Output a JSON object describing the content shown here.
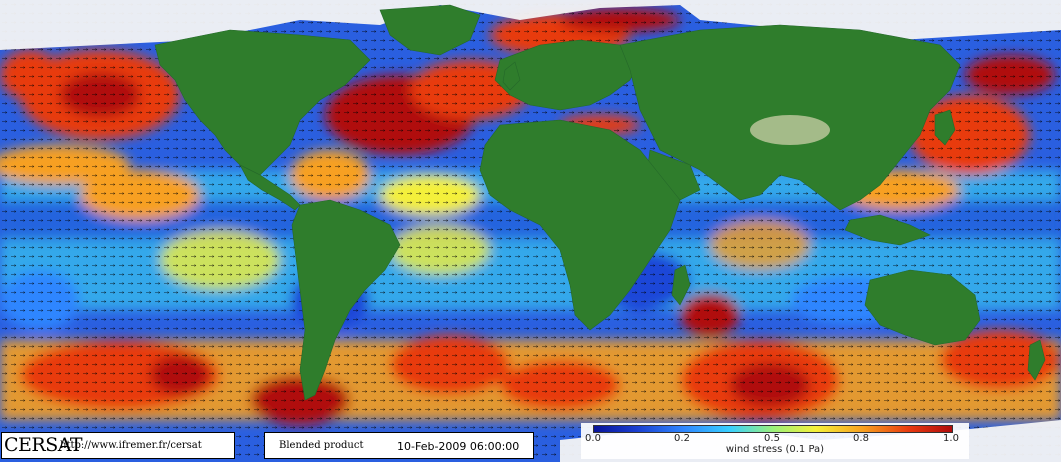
{
  "map": {
    "product": "Blended product",
    "datetime": "10-Feb-2009 06:00:00",
    "variable": "wind stress",
    "colormap": [
      "#08139a",
      "#1a3fd0",
      "#2f86ff",
      "#38d0ff",
      "#9af07a",
      "#f4f03a",
      "#f7a020",
      "#e83a10",
      "#b00c0c"
    ],
    "land_color": "#2f7d2c",
    "ice_color": "#f4f4f4",
    "vector_color": "#000000"
  },
  "branding": {
    "logo_text": "CERSAT",
    "url": "http://www.ifremer.fr/cersat"
  },
  "legend": {
    "title": "wind stress (0.1 Pa)",
    "ticks": [
      "0.0",
      "0.2",
      "0.5",
      "0.8",
      "1.0"
    ],
    "tick_values": [
      0.0,
      0.2,
      0.5,
      0.8,
      1.0
    ],
    "range": [
      0.0,
      1.0
    ]
  }
}
